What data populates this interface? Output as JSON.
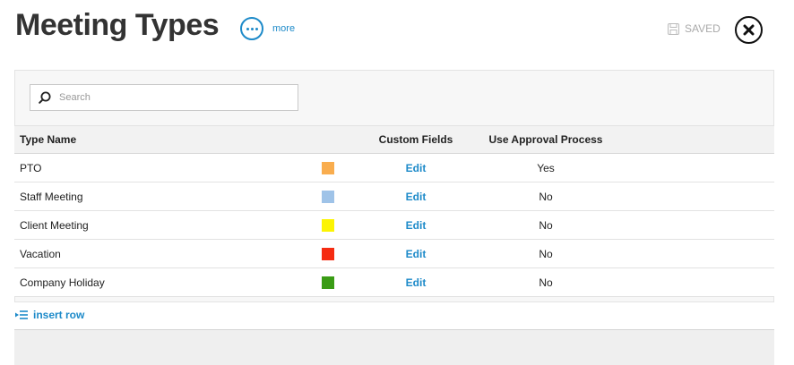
{
  "header": {
    "title": "Meeting Types",
    "more_label": "more",
    "saved_label": "SAVED"
  },
  "search": {
    "placeholder": "Search",
    "value": ""
  },
  "table": {
    "columns": {
      "type_name": "Type Name",
      "custom_fields": "Custom Fields",
      "use_approval": "Use Approval Process"
    },
    "rows": [
      {
        "name": "PTO",
        "color": "#f9ad4e",
        "custom_fields": "Edit",
        "approval": "Yes"
      },
      {
        "name": "Staff Meeting",
        "color": "#9fc3e8",
        "custom_fields": "Edit",
        "approval": "No"
      },
      {
        "name": "Client Meeting",
        "color": "#fcf403",
        "custom_fields": "Edit",
        "approval": "No"
      },
      {
        "name": "Vacation",
        "color": "#f52c12",
        "custom_fields": "Edit",
        "approval": "No"
      },
      {
        "name": "Company Holiday",
        "color": "#3a9c15",
        "custom_fields": "Edit",
        "approval": "No"
      }
    ]
  },
  "actions": {
    "insert_row_label": "insert row"
  },
  "colors": {
    "accent": "#1d8ac9"
  }
}
